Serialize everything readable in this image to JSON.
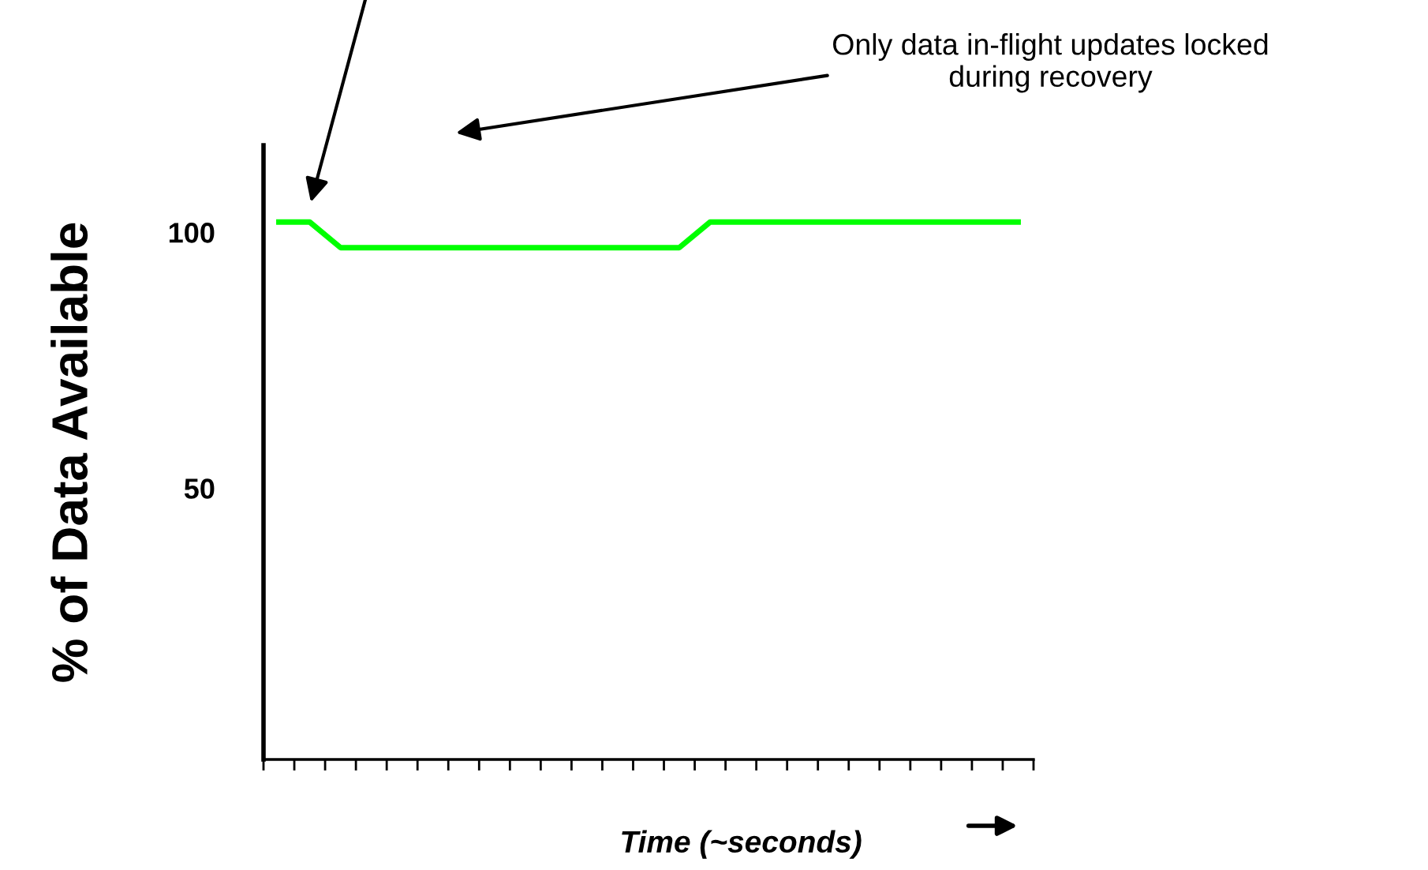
{
  "chart_data": {
    "type": "line",
    "ylabel": "% of Data Available",
    "xlabel": "Time (~seconds)",
    "categories": [
      null,
      null,
      null,
      null,
      null,
      null,
      null,
      null,
      null,
      null,
      null,
      null,
      null,
      null,
      null,
      null,
      null,
      null,
      null,
      null,
      null,
      null,
      null,
      null,
      null
    ],
    "series": [
      {
        "color": "#00ff00",
        "values": [
          102,
          102,
          97,
          97,
          97,
          97,
          97,
          97,
          97,
          97,
          97,
          97,
          97,
          97,
          102,
          102,
          102,
          102,
          102,
          102,
          102,
          102,
          102,
          102,
          102
        ]
      }
    ],
    "ylim": [
      -3,
      117
    ],
    "yticks": [
      50,
      100
    ],
    "grid": false,
    "legend": false,
    "marker": "none",
    "line_style": "solid",
    "annotations": [
      "Only data in-flight updates locked\nduring recovery"
    ]
  }
}
